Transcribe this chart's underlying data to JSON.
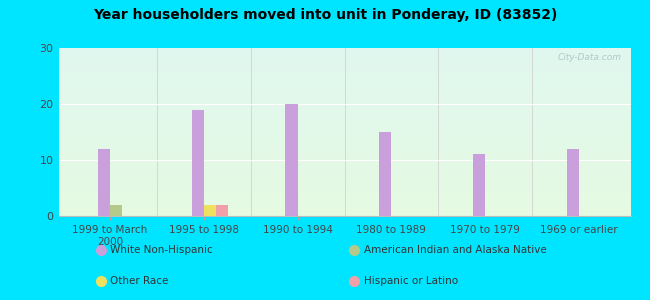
{
  "title": "Year householders moved into unit in Ponderay, ID (83852)",
  "categories": [
    "1999 to March\n2000",
    "1995 to 1998",
    "1990 to 1994",
    "1980 to 1989",
    "1970 to 1979",
    "1969 or earlier"
  ],
  "series": {
    "White Non-Hispanic": [
      12,
      19,
      20,
      15,
      11,
      12
    ],
    "American Indian and Alaska Native": [
      2,
      0,
      0,
      0,
      0,
      0
    ],
    "Other Race": [
      0,
      2,
      0,
      0,
      0,
      0
    ],
    "Hispanic or Latino": [
      0,
      2,
      0,
      0,
      0,
      0
    ]
  },
  "colors": {
    "White Non-Hispanic": "#c9a0dc",
    "American Indian and Alaska Native": "#b5c98a",
    "Other Race": "#f0e060",
    "Hispanic or Latino": "#f0a0a8"
  },
  "ylim": [
    0,
    30
  ],
  "yticks": [
    0,
    10,
    20,
    30
  ],
  "bar_width": 0.13,
  "outer_background": "#00e5ff",
  "watermark": "City-Data.com",
  "series_order": [
    "White Non-Hispanic",
    "American Indian and Alaska Native",
    "Other Race",
    "Hispanic or Latino"
  ],
  "legend_layout": [
    [
      "White Non-Hispanic",
      "American Indian and Alaska Native"
    ],
    [
      "Other Race",
      "Hispanic or Latino"
    ]
  ]
}
